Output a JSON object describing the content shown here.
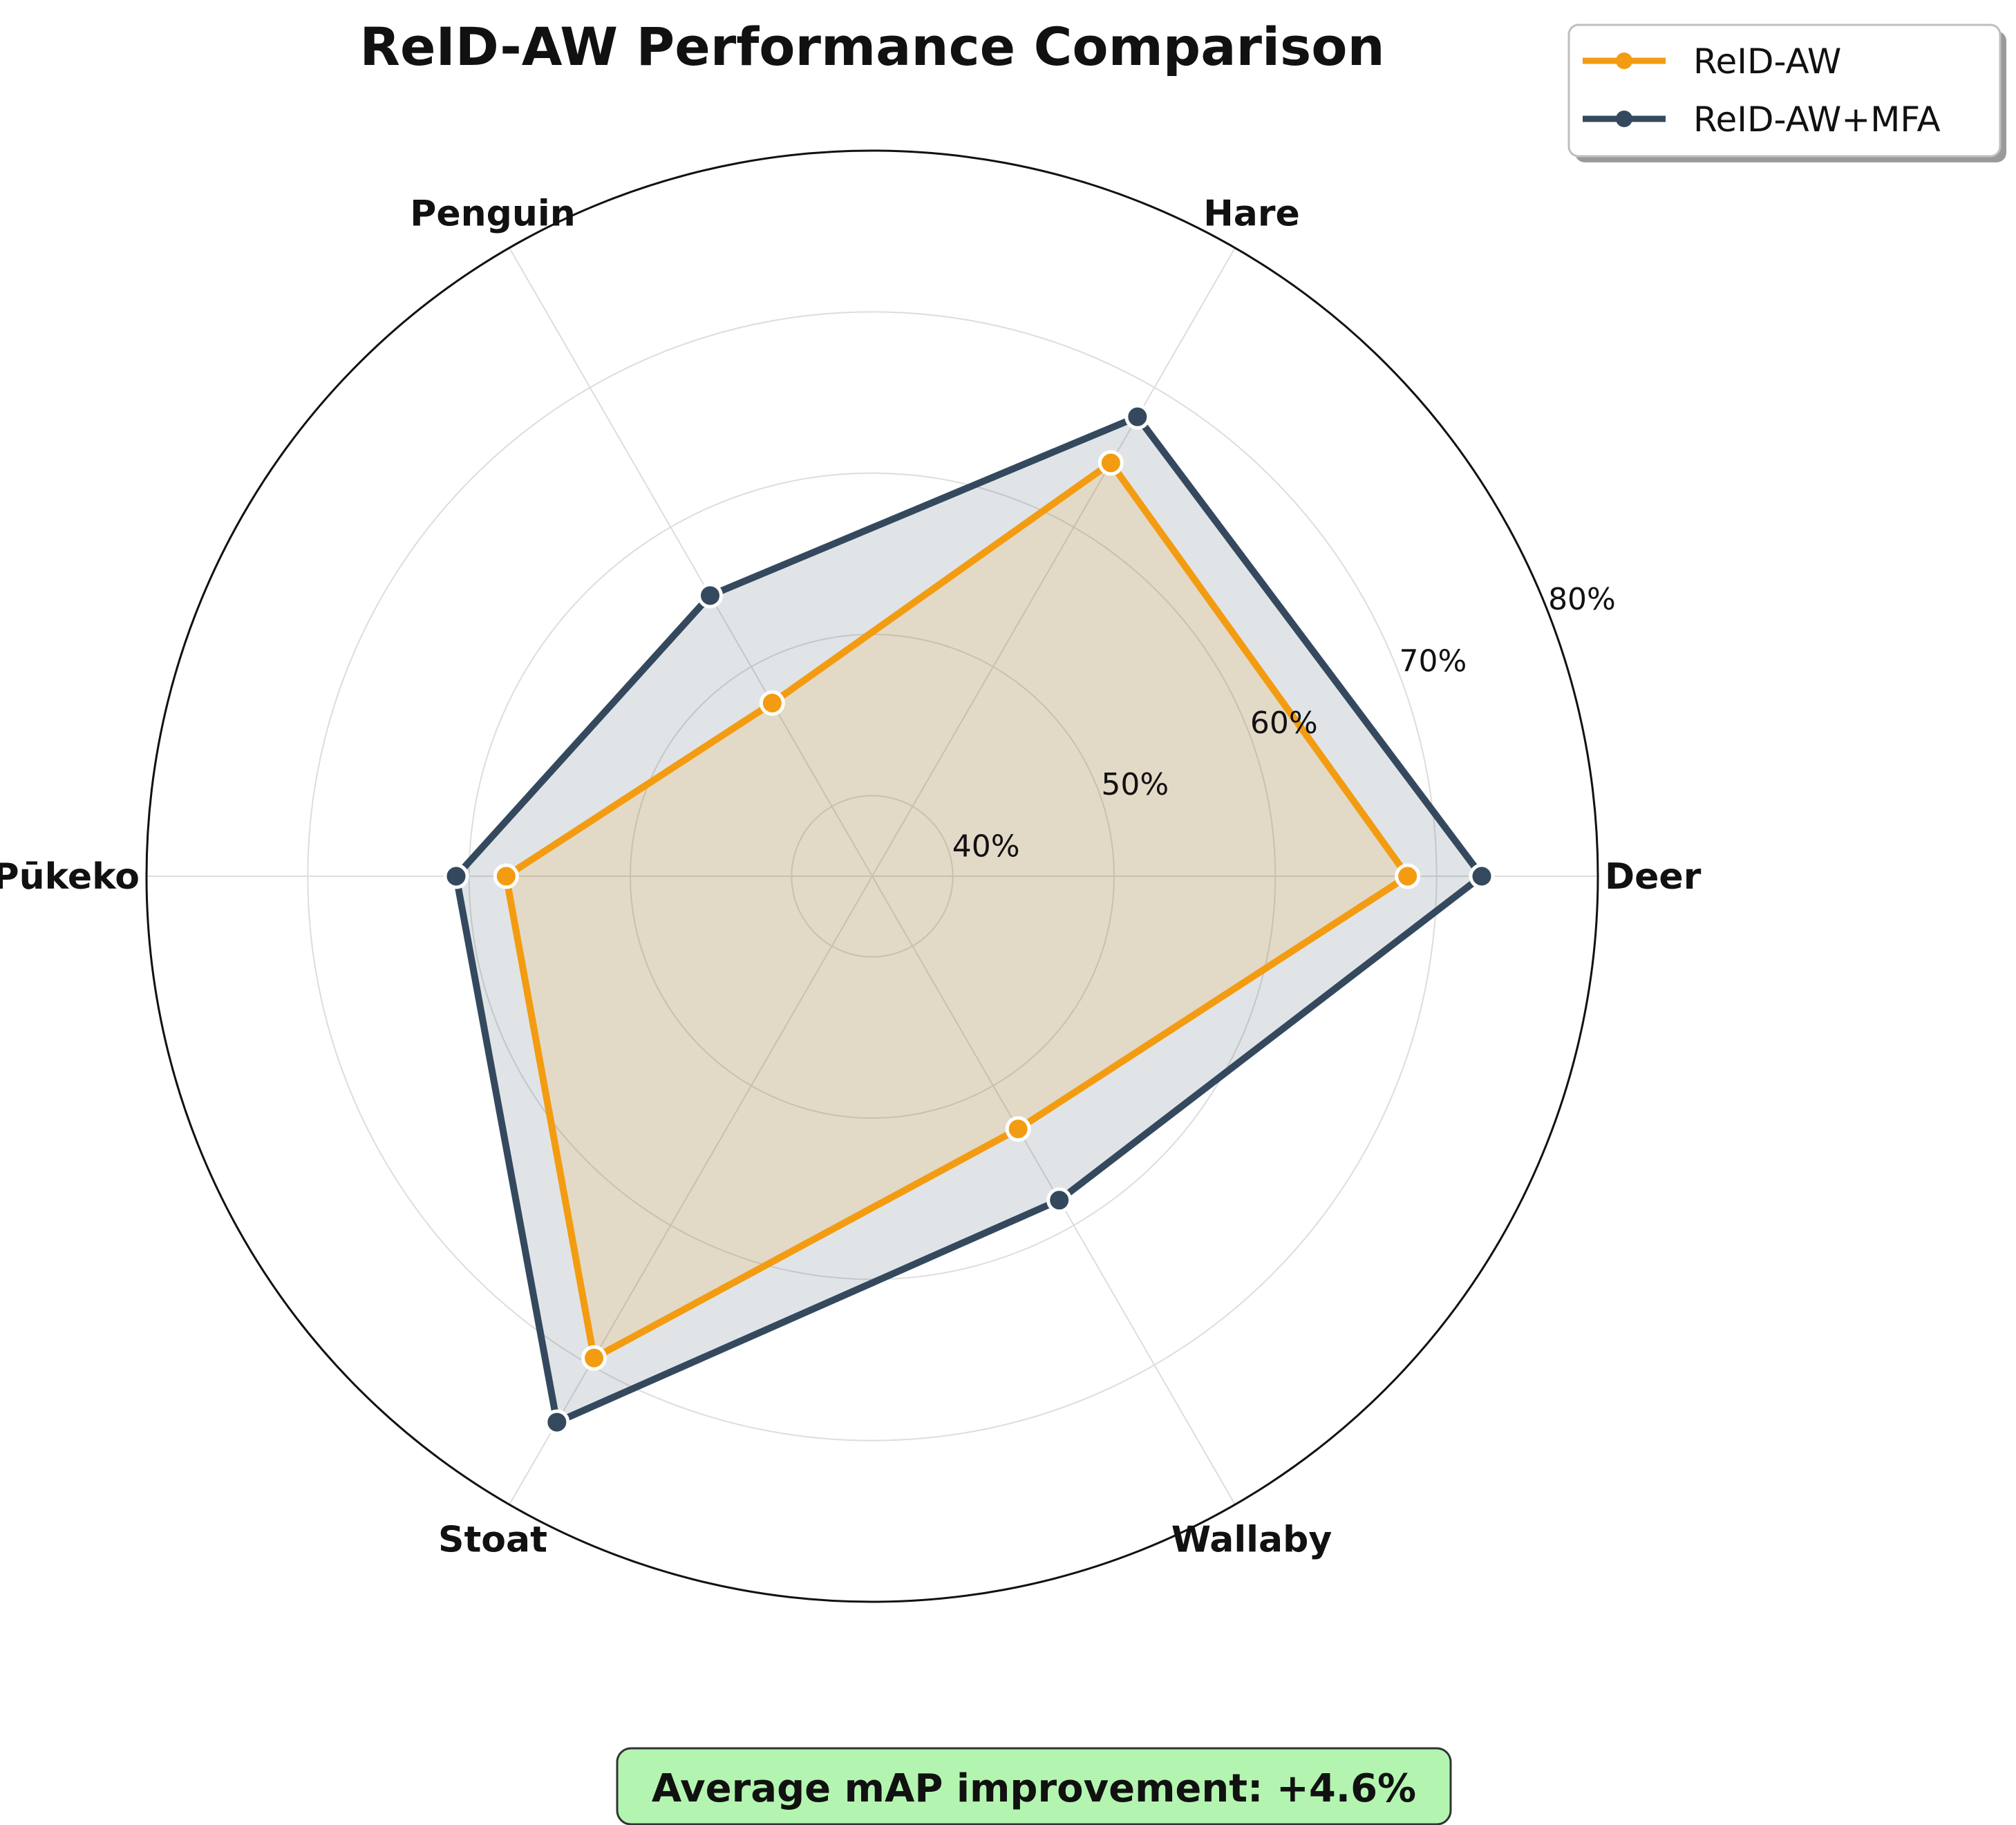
{
  "chart_data": {
    "type": "radar",
    "title": "ReID-AW Performance Comparison",
    "categories": [
      "Deer",
      "Hare",
      "Penguin",
      "Pūkeko",
      "Stoat",
      "Wallaby"
    ],
    "series": [
      {
        "name": "ReID-AW",
        "values": [
          68.2,
          64.6,
          47.4,
          57.7,
          69.5,
          53.1
        ],
        "color": "#f39c12"
      },
      {
        "name": "ReID-AW+MFA",
        "values": [
          72.8,
          67.9,
          55.1,
          60.8,
          74.1,
          58.2
        ],
        "color": "#34495e"
      }
    ],
    "rlim": [
      35,
      80
    ],
    "rticks": [
      40,
      50,
      60,
      70,
      80
    ],
    "rtick_labels": [
      "40%",
      "50%",
      "60%",
      "70%",
      "80%"
    ],
    "grid": true,
    "legend_position": "top-right"
  },
  "annotation": {
    "text": "Average mAP improvement: +4.6%",
    "background": "#b3f5b0"
  }
}
